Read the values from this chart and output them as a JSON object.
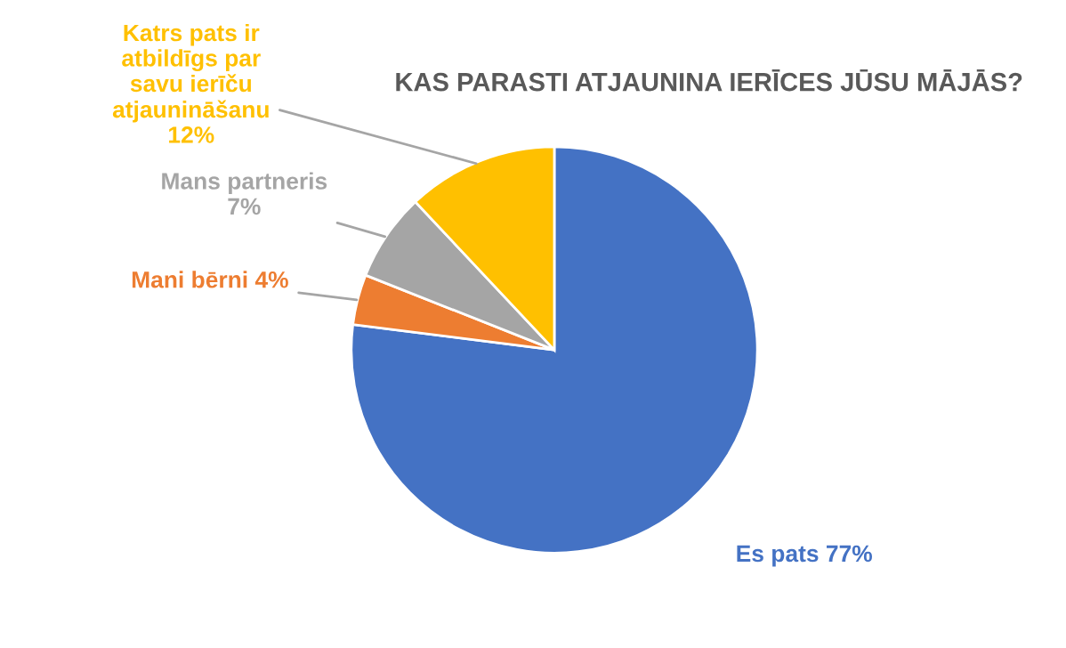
{
  "chart_data": {
    "type": "pie",
    "title": "KAS PARASTI ATJAUNINA IERĪCES JŪSU MĀJĀS?",
    "categories": [
      "Es pats",
      "Mani bērni",
      "Mans partneris",
      "Katrs pats ir\natbildīgs par\nsavu ierīču\natjaunināšanu"
    ],
    "values": [
      77,
      4,
      7,
      12
    ],
    "value_labels": [
      "77%",
      "4%",
      "7%",
      "12%"
    ],
    "colors": [
      "#4472c4",
      "#ed7d31",
      "#a5a5a5",
      "#ffc000"
    ],
    "legend": false
  }
}
